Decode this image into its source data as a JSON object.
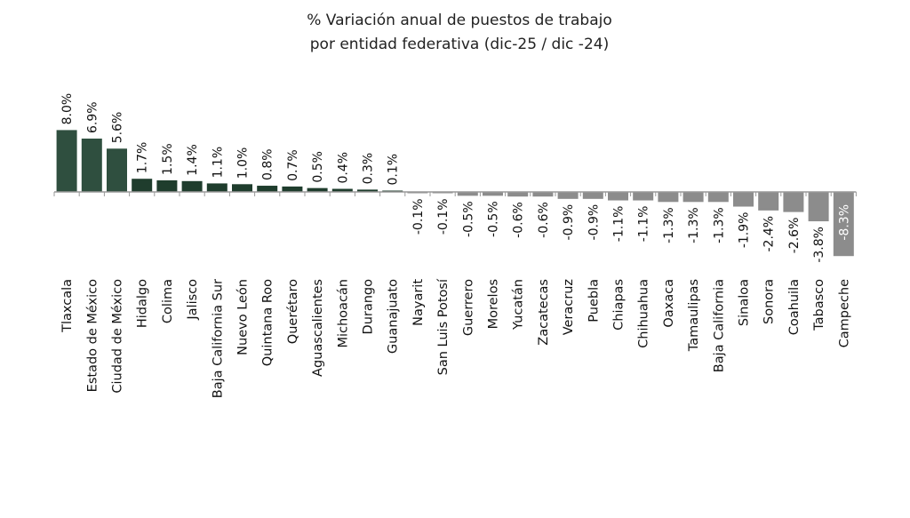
{
  "chart_data": {
    "type": "bar",
    "title": "% Variación anual de puestos de trabajo",
    "subtitle": "por entidad federativa (dic-25 / dic -24)",
    "xlabel": "",
    "ylabel": "",
    "grid": false,
    "categories": [
      "Tlaxcala",
      "Estado de México",
      "Ciudad de México",
      "Hidalgo",
      "Colima",
      "Jalisco",
      "Baja California Sur",
      "Nuevo León",
      "Quintana Roo",
      "Querétaro",
      "Aguascalientes",
      "Michoacán",
      "Durango",
      "Guanajuato",
      "Nayarit",
      "San Luis Potosí",
      "Guerrero",
      "Morelos",
      "Yucatán",
      "Zacatecas",
      "Veracruz",
      "Puebla",
      "Chiapas",
      "Chihuahua",
      "Oaxaca",
      "Tamaulipas",
      "Baja California",
      "Sinaloa",
      "Sonora",
      "Coahuila",
      "Tabasco",
      "Campeche"
    ],
    "values": [
      8.0,
      6.9,
      5.6,
      1.7,
      1.5,
      1.4,
      1.1,
      1.0,
      0.8,
      0.7,
      0.5,
      0.4,
      0.3,
      0.1,
      -0.1,
      -0.1,
      -0.5,
      -0.5,
      -0.6,
      -0.6,
      -0.9,
      -0.9,
      -1.1,
      -1.1,
      -1.3,
      -1.3,
      -1.3,
      -1.9,
      -2.4,
      -2.6,
      -3.8,
      -8.3
    ],
    "labels": [
      "8.0%",
      "6.9%",
      "5.6%",
      "1.7%",
      "1.5%",
      "1.4%",
      "1.1%",
      "1.0%",
      "0.8%",
      "0.7%",
      "0.5%",
      "0.4%",
      "0.3%",
      "0.1%",
      "-0.1%",
      "-0.1%",
      "-0.5%",
      "-0.5%",
      "-0.6%",
      "-0.6%",
      "-0.9%",
      "-0.9%",
      "-1.1%",
      "-1.1%",
      "-1.3%",
      "-1.3%",
      "-1.3%",
      "-1.9%",
      "-2.4%",
      "-2.6%",
      "-3.8%",
      "-8.3%"
    ],
    "colors": {
      "positive_top": "#2f4f3f",
      "positive": "#1f3d2d",
      "negative": "#8c8c8c",
      "axis": "#9a9a9a"
    }
  }
}
